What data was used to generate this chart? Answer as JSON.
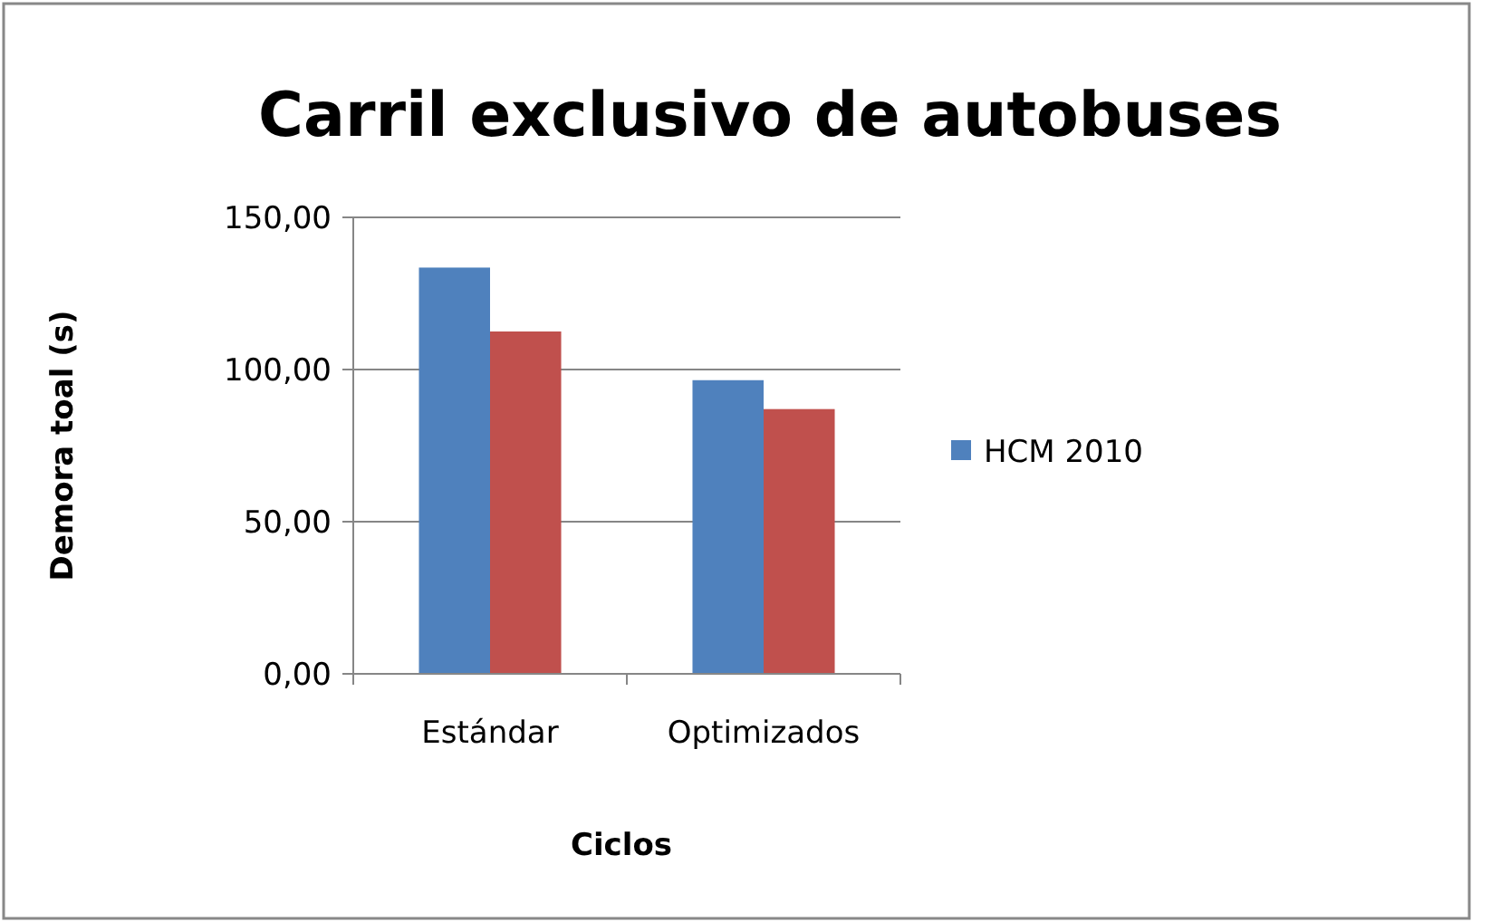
{
  "chart_data": {
    "type": "bar",
    "title": "Carril exclusivo de autobuses",
    "xlabel": "Ciclos",
    "ylabel": "Demora toal (s)",
    "categories": [
      "Estándar",
      "Optimizados"
    ],
    "series": [
      {
        "name": "HCM 2010",
        "color": "#4f81bd",
        "values": [
          133.5,
          96.5
        ]
      },
      {
        "color": "#c0504d",
        "values": [
          112.5,
          87
        ]
      }
    ],
    "ylim": [
      0,
      150
    ],
    "yticks": [
      {
        "value": 0,
        "label": "0,00"
      },
      {
        "value": 50,
        "label": "50,00"
      },
      {
        "value": 100,
        "label": "100,00"
      },
      {
        "value": 150,
        "label": "150,00"
      }
    ],
    "grid": "y",
    "legend": "right"
  }
}
